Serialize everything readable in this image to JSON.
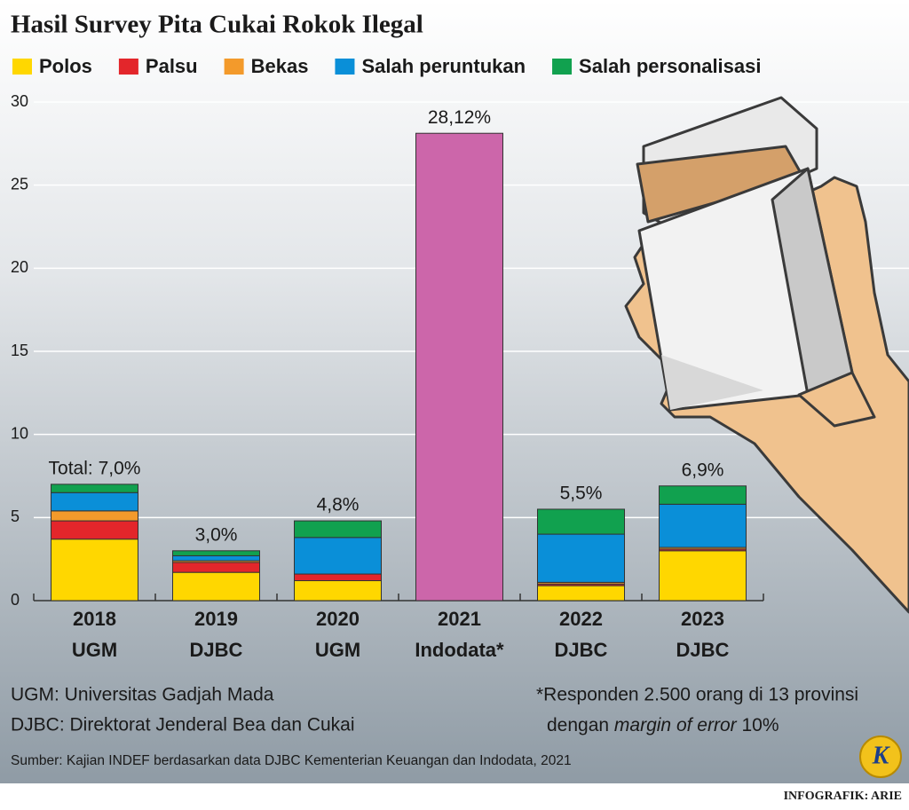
{
  "chart_data": {
    "type": "stacked-bar",
    "title": "Hasil Survey Pita Cukai Rokok Ilegal",
    "categories": [
      [
        "2018",
        "UGM"
      ],
      [
        "2019",
        "DJBC"
      ],
      [
        "2020",
        "UGM"
      ],
      [
        "2021",
        "Indodata*"
      ],
      [
        "2022",
        "DJBC"
      ],
      [
        "2023",
        "DJBC"
      ]
    ],
    "series": [
      {
        "name": "Polos",
        "color": "#ffd700",
        "values": [
          3.7,
          1.7,
          1.2,
          null,
          0.9,
          3.0
        ]
      },
      {
        "name": "Palsu",
        "color": "#e3262b",
        "values": [
          1.1,
          0.6,
          0.4,
          null,
          0.1,
          0.1
        ]
      },
      {
        "name": "Bekas",
        "color": "#f39a2b",
        "values": [
          0.6,
          0.1,
          0,
          null,
          0.1,
          0.1
        ]
      },
      {
        "name": "Salah peruntukan",
        "color": "#0a8fd8",
        "values": [
          1.1,
          0.3,
          2.2,
          null,
          2.9,
          2.6
        ]
      },
      {
        "name": "Salah personalisasi",
        "color": "#11a14f",
        "values": [
          0.5,
          0.3,
          1.0,
          null,
          1.5,
          1.1
        ]
      },
      {
        "color": "#cc66aa",
        "values": [
          null,
          null,
          null,
          28.12,
          null,
          null
        ]
      }
    ],
    "totals": [
      7.0,
      3.0,
      4.8,
      28.12,
      5.5,
      6.9
    ],
    "total_labels": [
      "Total: 7,0%",
      "3,0%",
      "4,8%",
      "28,12%",
      "5,5%",
      "6,9%"
    ],
    "ylim": [
      0,
      30
    ],
    "yticks": [
      0,
      5,
      10,
      15,
      20,
      25,
      30
    ],
    "grid": true,
    "notes_left": [
      "UGM: Universitas Gadjah Mada",
      "DJBC: Direktorat Jenderal Bea dan Cukai"
    ],
    "notes_right": [
      "*Responden 2.500 orang di 13 provinsi",
      "dengan margin of error 10%"
    ],
    "source": "Sumber: Kajian INDEF berdasarkan data DJBC Kementerian Keuangan dan Indodata, 2021",
    "logo": "K",
    "credit": "INFOGRAFIK: ARIE"
  }
}
